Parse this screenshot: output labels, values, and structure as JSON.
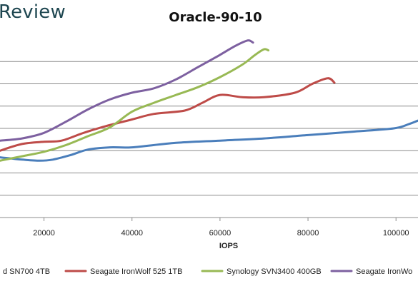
{
  "brand": "Review",
  "chart_data": {
    "type": "line",
    "title": "Oracle-90-10",
    "xlabel": "IOPS",
    "ylabel": "",
    "xlim": [
      10000,
      105000
    ],
    "x_ticks": [
      20000,
      40000,
      60000,
      80000,
      100000
    ],
    "x_tick_labels": [
      "20000",
      "40000",
      "60000",
      "80000",
      "100000"
    ],
    "ylim": [
      0,
      8
    ],
    "y_gridlines": [
      1,
      2,
      3,
      4,
      5,
      6,
      7
    ],
    "grid": "horizontal",
    "legend_position": "bottom",
    "series": [
      {
        "name": "d SN700 4TB",
        "color": "#4a7ebb",
        "x": [
          10000,
          15000,
          19000,
          22000,
          26000,
          30000,
          35000,
          40000,
          50000,
          60000,
          70000,
          80000,
          90000,
          99500,
          103000,
          105000
        ],
        "y": [
          2.7,
          2.6,
          2.55,
          2.6,
          2.8,
          3.05,
          3.15,
          3.15,
          3.35,
          3.45,
          3.55,
          3.7,
          3.85,
          4.0,
          4.2,
          4.35
        ]
      },
      {
        "name": "Seagate IronWolf 525 1TB",
        "color": "#be4b48",
        "x": [
          10000,
          15000,
          20000,
          24000,
          29000,
          34000,
          40000,
          45000,
          52000,
          56000,
          60000,
          65000,
          70000,
          77000,
          81000,
          84500,
          86000
        ],
        "y": [
          3.0,
          3.3,
          3.4,
          3.45,
          3.8,
          4.1,
          4.4,
          4.65,
          4.8,
          5.15,
          5.5,
          5.4,
          5.4,
          5.6,
          6.0,
          6.25,
          6.05
        ]
      },
      {
        "name": "Synology SVN3400 400GB",
        "color": "#98b954",
        "x": [
          10000,
          15000,
          20000,
          25000,
          30000,
          35000,
          40000,
          45000,
          50000,
          55000,
          60000,
          65000,
          68000,
          70000,
          71000
        ],
        "y": [
          2.55,
          2.75,
          2.95,
          3.25,
          3.65,
          4.05,
          4.75,
          5.15,
          5.5,
          5.85,
          6.3,
          6.85,
          7.3,
          7.55,
          7.5
        ]
      },
      {
        "name": "Seagate IronWo",
        "color": "#7d60a0",
        "x": [
          10000,
          15000,
          20000,
          25000,
          30000,
          35000,
          40000,
          45000,
          50000,
          55000,
          60000,
          63000,
          65000,
          66500,
          67500
        ],
        "y": [
          3.45,
          3.55,
          3.8,
          4.3,
          4.85,
          5.3,
          5.6,
          5.8,
          6.2,
          6.75,
          7.3,
          7.65,
          7.85,
          7.95,
          7.85
        ]
      }
    ]
  }
}
